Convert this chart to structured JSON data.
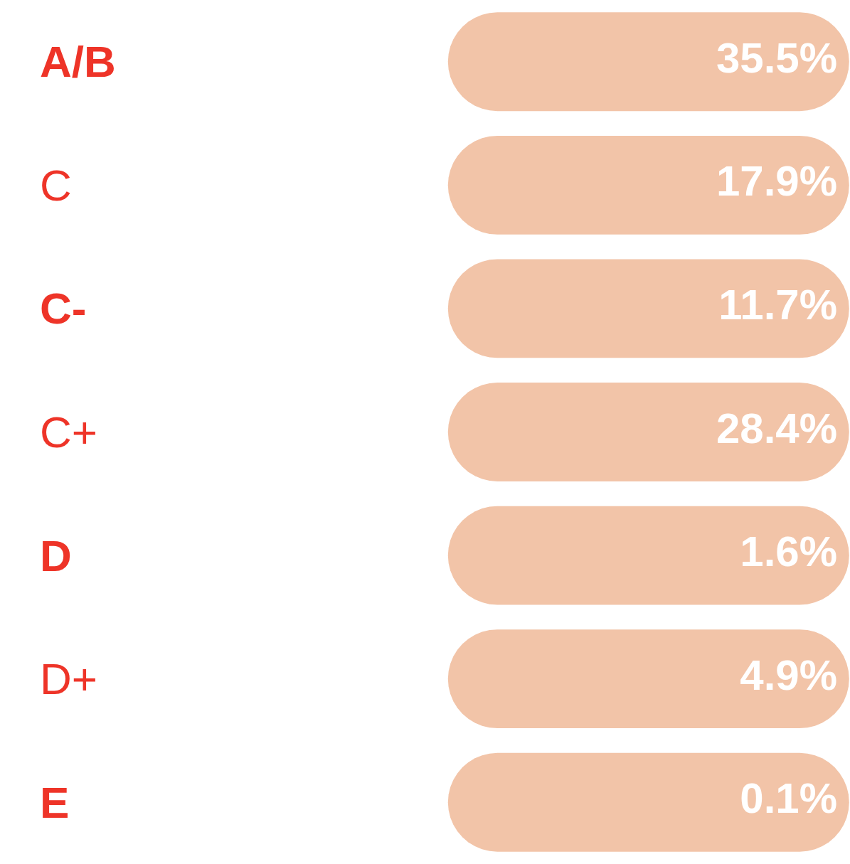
{
  "chart_data": {
    "type": "other",
    "categories": [
      "A/B",
      "C",
      "C-",
      "C+",
      "D",
      "D+",
      "E"
    ],
    "values": [
      35.5,
      17.9,
      11.7,
      28.4,
      1.6,
      4.9,
      0.1
    ],
    "value_labels": [
      "35.5%",
      "17.9%",
      "11.7%",
      "28.4%",
      "1.6%",
      "4.9%",
      "0.1%"
    ],
    "color": "#f2c4a8"
  }
}
